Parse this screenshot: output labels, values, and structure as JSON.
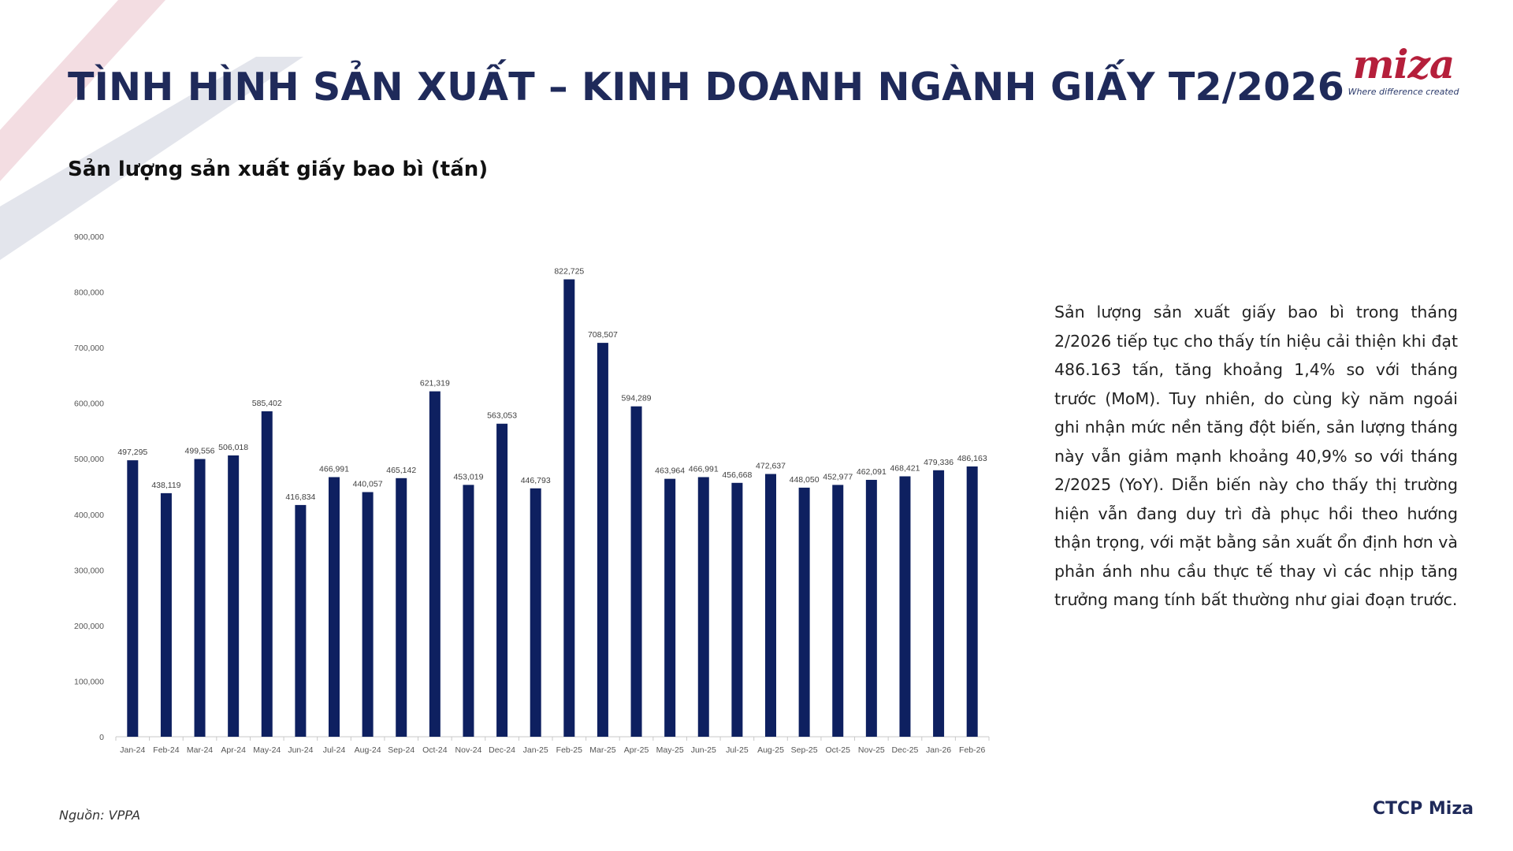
{
  "header": {
    "title": "TÌNH HÌNH SẢN XUẤT – KINH DOANH NGÀNH GIẤY T2/2026",
    "logo_text": "miza",
    "logo_tagline": "Where difference created"
  },
  "section": {
    "subtitle": "Sản lượng sản xuất giấy bao bì (tấn)"
  },
  "commentary": {
    "paragraph": "Sản lượng sản xuất giấy bao bì trong tháng 2/2026 tiếp tục cho thấy tín hiệu cải thiện khi đạt 486.163 tấn, tăng khoảng 1,4% so với tháng trước (MoM). Tuy nhiên, do cùng kỳ năm ngoái ghi nhận mức nền tăng đột biến, sản lượng tháng này vẫn giảm mạnh khoảng 40,9% so với tháng 2/2025 (YoY). Diễn biến này cho thấy thị trường hiện vẫn đang duy trì đà phục hồi theo hướng thận trọng, với mặt bằng sản xuất ổn định hơn và phản ánh nhu cầu thực tế thay vì các nhịp tăng trưởng mang tính bất thường như giai đoạn trước."
  },
  "footer": {
    "source": "Nguồn: VPPA",
    "company": "CTCP Miza"
  },
  "colors": {
    "bar": "#0e2060",
    "title": "#1f2a5a",
    "accent": "#b51f3b",
    "decor_red": "#f3dde2",
    "decor_grey": "#e3e5ec"
  },
  "chart_data": {
    "type": "bar",
    "title": "",
    "xlabel": "",
    "ylabel": "",
    "ylim": [
      0,
      900000
    ],
    "yticks": [
      0,
      100000,
      200000,
      300000,
      400000,
      500000,
      600000,
      700000,
      800000,
      900000
    ],
    "ytick_labels": [
      "0",
      "100,000",
      "200,000",
      "300,000",
      "400,000",
      "500,000",
      "600,000",
      "700,000",
      "800,000",
      "900,000"
    ],
    "grid": false,
    "categories": [
      "Jan-24",
      "Feb-24",
      "Mar-24",
      "Apr-24",
      "May-24",
      "Jun-24",
      "Jul-24",
      "Aug-24",
      "Sep-24",
      "Oct-24",
      "Nov-24",
      "Dec-24",
      "Jan-25",
      "Feb-25",
      "Mar-25",
      "Apr-25",
      "May-25",
      "Jun-25",
      "Jul-25",
      "Aug-25",
      "Sep-25",
      "Oct-25",
      "Nov-25",
      "Dec-25",
      "Jan-26",
      "Feb-26"
    ],
    "values": [
      497295,
      438119,
      499556,
      506018,
      585402,
      416834,
      466991,
      440057,
      465142,
      621319,
      453019,
      563053,
      446793,
      822725,
      708507,
      594289,
      463964,
      466991,
      456668,
      472637,
      448050,
      452977,
      462091,
      468421,
      479336,
      486163
    ],
    "data_labels": [
      "497,295",
      "438,119",
      "499,556",
      "506,018",
      "585,402",
      "416,834",
      "466,991",
      "440,057",
      "465,142",
      "621,319",
      "453,019",
      "563,053",
      "446,793",
      "822,725",
      "708,507",
      "594,289",
      "463,964",
      "466,991",
      "456,668",
      "472,637",
      "448,050",
      "452,977",
      "462,091",
      "468,421",
      "479,336",
      "486,163"
    ]
  }
}
